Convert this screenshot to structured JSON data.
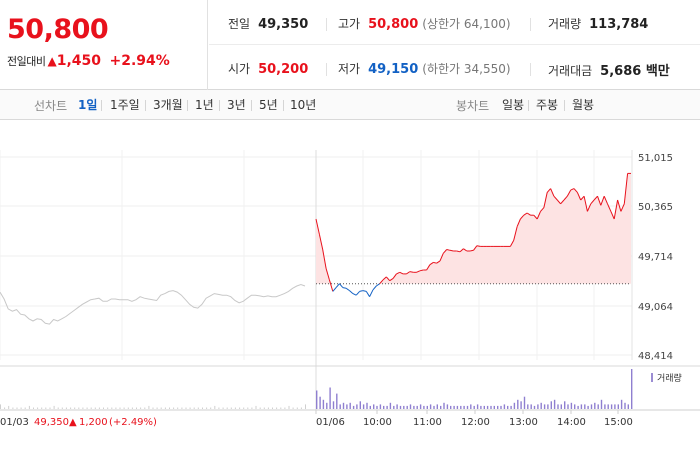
{
  "summary": {
    "current_price": "50,800",
    "change_label": "전일대비",
    "change_arrow": "▲",
    "change_abs": "1,450",
    "change_pct": "+2.94%",
    "prev_close_label": "전일",
    "prev_close": "49,350",
    "high_label": "고가",
    "high": "50,800",
    "upper_limit": "(상한가 64,100)",
    "volume_label": "거래량",
    "volume": "113,784",
    "open_label": "시가",
    "open": "50,200",
    "low_label": "저가",
    "low": "49,150",
    "lower_limit": "(하한가 34,550)",
    "turnover_label": "거래대금",
    "turnover": "5,686 백만"
  },
  "tabs": {
    "line_label": "선차트",
    "line_items": [
      "1일",
      "1주일",
      "3개월",
      "1년",
      "3년",
      "5년",
      "10년"
    ],
    "candle_label": "봉차트",
    "candle_items": [
      "일봉",
      "주봉",
      "월봉"
    ]
  },
  "colors": {
    "up": "#e8111c",
    "down": "#1261c4",
    "prev": "#c8c8c8"
  },
  "chart_data": {
    "type": "line",
    "price_axis": [
      "51,015",
      "50,365",
      "49,714",
      "49,064",
      "48,414"
    ],
    "ylim": [
      48414,
      51015
    ],
    "time_labels": [
      "01/06",
      "10:00",
      "11:00",
      "12:00",
      "13:00",
      "14:00",
      "15:00"
    ],
    "prev_day_label": "01/03",
    "prev_day_summary": {
      "price": "49,350",
      "arrow": "▲",
      "change": "1,200",
      "pct": "(+2.49%)"
    },
    "reference_price": 49350,
    "volume_legend": "거래량",
    "series": [
      {
        "session": "prev",
        "values": [
          49240,
          49150,
          49020,
          48990,
          49010,
          48950,
          48940,
          48890,
          48860,
          48890,
          48880,
          48830,
          48820,
          48880,
          48860,
          48890,
          48920,
          48960,
          49000,
          49040,
          49080,
          49110,
          49140,
          49150,
          49160,
          49120,
          49120,
          49150,
          49150,
          49140,
          49140,
          49140,
          49120,
          49140,
          49180,
          49160,
          49150,
          49140,
          49130,
          49200,
          49220,
          49250,
          49260,
          49240,
          49200,
          49140,
          49080,
          49040,
          49030,
          49080,
          49160,
          49190,
          49220,
          49210,
          49200,
          49200,
          49180,
          49130,
          49100,
          49120,
          49160,
          49200,
          49200,
          49190,
          49180,
          49190,
          49180,
          49180,
          49200,
          49220,
          49250,
          49290,
          49320,
          49340,
          49320
        ]
      },
      {
        "session": "today",
        "values": [
          50200,
          50000,
          49800,
          49550,
          49400,
          49250,
          49300,
          49350,
          49300,
          49290,
          49260,
          49220,
          49200,
          49250,
          49260,
          49250,
          49180,
          49270,
          49320,
          49350,
          49400,
          49440,
          49390,
          49420,
          49480,
          49500,
          49480,
          49480,
          49510,
          49500,
          49500,
          49520,
          49530,
          49530,
          49600,
          49630,
          49620,
          49650,
          49750,
          49800,
          49790,
          49780,
          49780,
          49770,
          49810,
          49780,
          49780,
          49790,
          49850,
          49840,
          49840,
          49840,
          49840,
          49840,
          49840,
          49840,
          49840,
          49840,
          49840,
          49920,
          50100,
          50200,
          50250,
          50280,
          50250,
          50250,
          50200,
          50300,
          50350,
          50550,
          50600,
          50500,
          50450,
          50400,
          50450,
          50500,
          50580,
          50600,
          50550,
          50450,
          50500,
          50300,
          50400,
          50450,
          50500,
          50380,
          50500,
          50400,
          50300,
          50200,
          50450,
          50300,
          50400,
          50800,
          50800
        ]
      }
    ],
    "volume": {
      "prev": [
        3,
        1,
        2,
        1,
        1,
        1,
        1,
        2,
        1,
        1,
        1,
        1,
        1,
        2,
        1,
        1,
        1,
        1,
        1,
        1,
        1,
        1,
        1,
        1,
        1,
        1,
        1,
        1,
        1,
        1,
        1,
        1,
        1,
        1,
        1,
        1,
        2,
        1,
        1,
        1,
        1,
        1,
        1,
        1,
        1,
        1,
        1,
        1,
        1,
        1,
        1,
        1,
        2,
        1,
        1,
        1,
        1,
        1,
        1,
        1,
        1,
        1,
        2,
        1,
        1,
        1,
        1,
        1,
        1,
        1,
        2,
        1,
        1,
        1,
        3
      ],
      "today": [
        12,
        8,
        6,
        4,
        14,
        5,
        10,
        3,
        4,
        3,
        4,
        2,
        3,
        5,
        3,
        4,
        2,
        3,
        2,
        3,
        2,
        2,
        4,
        2,
        3,
        2,
        2,
        2,
        3,
        2,
        2,
        3,
        2,
        2,
        3,
        2,
        3,
        2,
        4,
        3,
        2,
        2,
        2,
        2,
        2,
        2,
        3,
        2,
        3,
        2,
        2,
        2,
        2,
        2,
        2,
        2,
        3,
        2,
        2,
        4,
        6,
        5,
        8,
        3,
        3,
        2,
        3,
        4,
        3,
        3,
        5,
        6,
        3,
        3,
        5,
        3,
        4,
        3,
        2,
        3,
        3,
        2,
        3,
        4,
        3,
        6,
        3,
        3,
        3,
        3,
        3,
        6,
        4,
        3,
        26
      ]
    }
  }
}
